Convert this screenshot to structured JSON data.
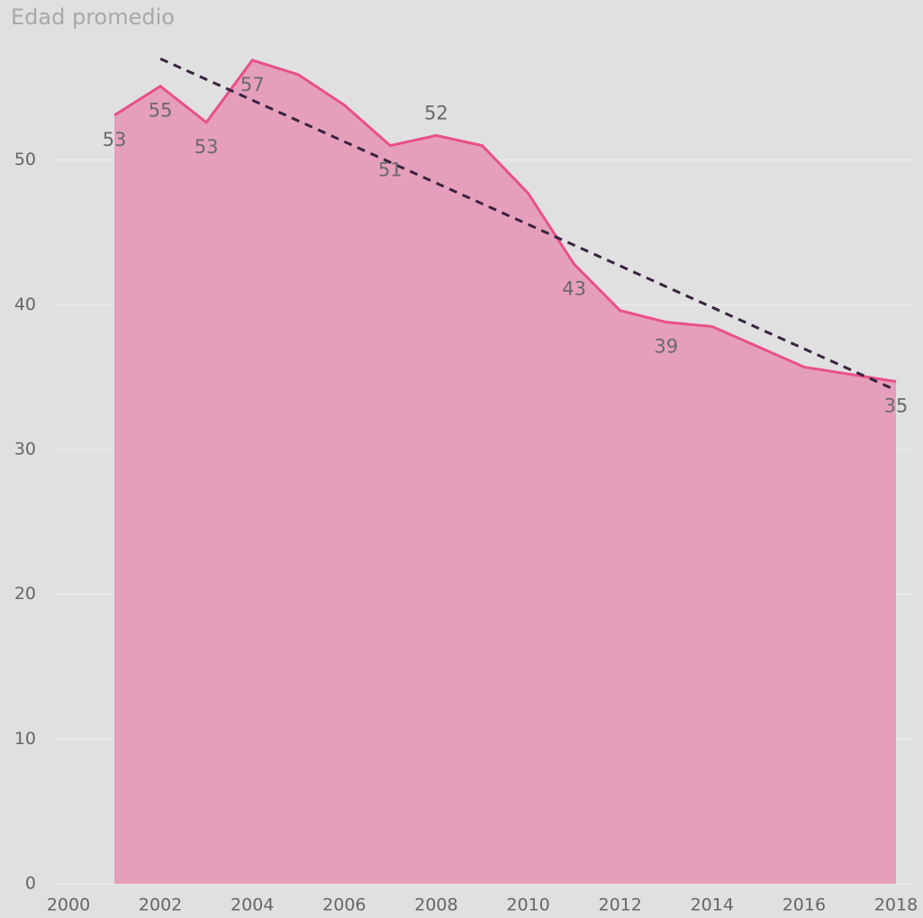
{
  "chart_data": {
    "type": "area",
    "title": "Edad promedio",
    "x": [
      2001,
      2002,
      2003,
      2004,
      2005,
      2006,
      2007,
      2008,
      2009,
      2010,
      2011,
      2012,
      2013,
      2014,
      2015,
      2016,
      2017,
      2018
    ],
    "values": [
      53.1,
      55.1,
      52.6,
      56.9,
      55.9,
      53.8,
      51.0,
      51.7,
      51.0,
      47.7,
      42.8,
      39.6,
      38.8,
      38.5,
      37.1,
      35.7,
      35.2,
      34.7
    ],
    "value_labels": [
      "53",
      "55",
      "53",
      "57",
      null,
      null,
      "51",
      "52",
      null,
      null,
      "43",
      null,
      "39",
      null,
      null,
      null,
      null,
      "35"
    ],
    "color": "#e8508a",
    "fill": "#e59fbb",
    "trendline": {
      "x": [
        2002,
        2018
      ],
      "values": [
        57.0,
        34.1
      ],
      "color": "#3a2340"
    },
    "xlim": [
      2000,
      2018
    ],
    "xticks": [
      2000,
      2002,
      2004,
      2006,
      2008,
      2010,
      2012,
      2014,
      2016,
      2018
    ],
    "ylim": [
      0,
      60
    ],
    "yticks": [
      0,
      10,
      20,
      30,
      40,
      50
    ],
    "grid": true
  }
}
